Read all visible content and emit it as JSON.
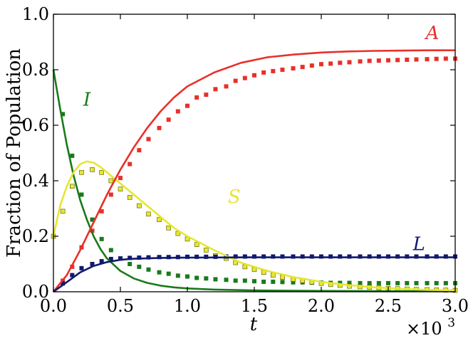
{
  "chart_data": {
    "type": "line",
    "title": "",
    "xlabel": "t",
    "ylabel": "Fraction of Population",
    "x_multiplier_label": "×10",
    "x_multiplier_exp": "3",
    "xlim": [
      0,
      3.0
    ],
    "ylim": [
      0,
      1.0
    ],
    "xticks": [
      "0.0",
      "0.5",
      "1.0",
      "1.5",
      "2.0",
      "2.5",
      "3.0"
    ],
    "yticks": [
      "0.0",
      "0.2",
      "0.4",
      "0.6",
      "0.8",
      "1.0"
    ],
    "grid": false,
    "series": [
      {
        "name": "I",
        "color": "#1a7a1a",
        "line": {
          "x": [
            0,
            0.05,
            0.1,
            0.15,
            0.2,
            0.25,
            0.3,
            0.35,
            0.4,
            0.5,
            0.6,
            0.7,
            0.8,
            0.9,
            1.0,
            1.2,
            1.5,
            2.0,
            2.5,
            3.0
          ],
          "y": [
            0.8,
            0.66,
            0.53,
            0.42,
            0.33,
            0.26,
            0.2,
            0.155,
            0.12,
            0.075,
            0.048,
            0.032,
            0.022,
            0.016,
            0.012,
            0.008,
            0.005,
            0.003,
            0.002,
            0.002
          ]
        },
        "points": {
          "x": [
            0.07,
            0.14,
            0.21,
            0.29,
            0.36,
            0.43,
            0.5,
            0.57,
            0.64,
            0.71,
            0.79,
            0.86,
            0.93,
            1.0,
            1.07,
            1.14,
            1.21,
            1.29,
            1.36,
            1.43,
            1.5,
            1.57,
            1.64,
            1.71,
            1.79,
            1.86,
            1.93,
            2.0,
            2.07,
            2.14,
            2.21,
            2.29,
            2.36,
            2.43,
            2.5,
            2.57,
            2.64,
            2.71,
            2.79,
            2.86,
            2.93,
            3.0
          ],
          "y": [
            0.64,
            0.49,
            0.35,
            0.26,
            0.19,
            0.15,
            0.12,
            0.1,
            0.09,
            0.08,
            0.07,
            0.065,
            0.058,
            0.055,
            0.05,
            0.048,
            0.045,
            0.043,
            0.04,
            0.04,
            0.038,
            0.036,
            0.036,
            0.035,
            0.034,
            0.034,
            0.033,
            0.033,
            0.032,
            0.032,
            0.032,
            0.031,
            0.031,
            0.031,
            0.031,
            0.031,
            0.031,
            0.031,
            0.031,
            0.031,
            0.031,
            0.031
          ]
        }
      },
      {
        "name": "S",
        "color": "#e6e632",
        "line": {
          "x": [
            0,
            0.05,
            0.1,
            0.15,
            0.2,
            0.25,
            0.3,
            0.35,
            0.4,
            0.5,
            0.6,
            0.7,
            0.8,
            0.9,
            1.0,
            1.2,
            1.4,
            1.6,
            1.8,
            2.0,
            2.2,
            2.4,
            2.6,
            2.8,
            3.0
          ],
          "y": [
            0.2,
            0.31,
            0.38,
            0.43,
            0.46,
            0.47,
            0.465,
            0.45,
            0.43,
            0.39,
            0.35,
            0.31,
            0.27,
            0.23,
            0.2,
            0.15,
            0.105,
            0.075,
            0.052,
            0.036,
            0.024,
            0.016,
            0.01,
            0.007,
            0.005
          ]
        },
        "points": {
          "x": [
            0.0,
            0.07,
            0.14,
            0.21,
            0.29,
            0.36,
            0.43,
            0.5,
            0.57,
            0.64,
            0.71,
            0.79,
            0.86,
            0.93,
            1.0,
            1.07,
            1.14,
            1.21,
            1.29,
            1.36,
            1.43,
            1.5,
            1.57,
            1.64,
            1.71,
            1.79,
            1.86,
            1.93,
            2.0,
            2.07,
            2.14,
            2.21,
            2.29,
            2.36,
            2.43,
            2.5,
            2.57,
            2.64,
            2.71,
            2.79,
            2.86,
            2.93,
            3.0
          ],
          "y": [
            0.2,
            0.29,
            0.38,
            0.43,
            0.44,
            0.43,
            0.4,
            0.37,
            0.34,
            0.31,
            0.28,
            0.26,
            0.23,
            0.21,
            0.19,
            0.17,
            0.15,
            0.13,
            0.12,
            0.105,
            0.09,
            0.08,
            0.07,
            0.06,
            0.052,
            0.045,
            0.04,
            0.035,
            0.03,
            0.026,
            0.023,
            0.02,
            0.018,
            0.016,
            0.014,
            0.012,
            0.011,
            0.01,
            0.009,
            0.008,
            0.007,
            0.006,
            0.005
          ]
        }
      },
      {
        "name": "A",
        "color": "#e8302a",
        "line": {
          "x": [
            0,
            0.1,
            0.2,
            0.3,
            0.4,
            0.5,
            0.6,
            0.7,
            0.8,
            0.9,
            1.0,
            1.2,
            1.4,
            1.6,
            1.8,
            2.0,
            2.2,
            2.4,
            2.6,
            2.8,
            3.0
          ],
          "y": [
            0,
            0.06,
            0.15,
            0.25,
            0.35,
            0.44,
            0.52,
            0.59,
            0.65,
            0.7,
            0.74,
            0.79,
            0.825,
            0.845,
            0.855,
            0.862,
            0.866,
            0.868,
            0.869,
            0.87,
            0.87
          ]
        },
        "points": {
          "x": [
            0.07,
            0.14,
            0.21,
            0.29,
            0.36,
            0.43,
            0.5,
            0.57,
            0.64,
            0.71,
            0.79,
            0.86,
            0.93,
            1.0,
            1.07,
            1.14,
            1.21,
            1.29,
            1.36,
            1.43,
            1.5,
            1.57,
            1.64,
            1.71,
            1.79,
            1.86,
            1.93,
            2.0,
            2.07,
            2.14,
            2.21,
            2.29,
            2.36,
            2.43,
            2.5,
            2.57,
            2.64,
            2.71,
            2.79,
            2.86,
            2.93,
            3.0
          ],
          "y": [
            0.04,
            0.09,
            0.16,
            0.22,
            0.29,
            0.35,
            0.41,
            0.46,
            0.51,
            0.55,
            0.59,
            0.62,
            0.65,
            0.67,
            0.7,
            0.71,
            0.73,
            0.74,
            0.76,
            0.77,
            0.78,
            0.79,
            0.795,
            0.8,
            0.805,
            0.81,
            0.815,
            0.82,
            0.822,
            0.825,
            0.827,
            0.83,
            0.832,
            0.833,
            0.834,
            0.835,
            0.836,
            0.837,
            0.838,
            0.839,
            0.84,
            0.84
          ]
        }
      },
      {
        "name": "L",
        "color": "#101a6e",
        "line": {
          "x": [
            0,
            0.1,
            0.2,
            0.3,
            0.4,
            0.5,
            0.6,
            0.8,
            1.0,
            1.5,
            2.0,
            2.5,
            3.0
          ],
          "y": [
            0,
            0.035,
            0.07,
            0.093,
            0.107,
            0.115,
            0.119,
            0.122,
            0.123,
            0.124,
            0.124,
            0.124,
            0.124
          ]
        },
        "points": {
          "x": [
            0.07,
            0.14,
            0.21,
            0.29,
            0.36,
            0.43,
            0.5,
            0.57,
            0.64,
            0.71,
            0.79,
            0.86,
            0.93,
            1.0,
            1.07,
            1.14,
            1.21,
            1.29,
            1.36,
            1.43,
            1.5,
            1.57,
            1.64,
            1.71,
            1.79,
            1.86,
            1.93,
            2.0,
            2.07,
            2.14,
            2.21,
            2.29,
            2.36,
            2.43,
            2.5,
            2.57,
            2.64,
            2.71,
            2.79,
            2.86,
            2.93,
            3.0
          ],
          "y": [
            0.03,
            0.06,
            0.085,
            0.1,
            0.11,
            0.118,
            0.12,
            0.122,
            0.123,
            0.124,
            0.125,
            0.125,
            0.125,
            0.126,
            0.126,
            0.126,
            0.126,
            0.127,
            0.127,
            0.127,
            0.127,
            0.127,
            0.127,
            0.127,
            0.127,
            0.127,
            0.127,
            0.127,
            0.127,
            0.127,
            0.127,
            0.127,
            0.127,
            0.127,
            0.127,
            0.127,
            0.127,
            0.127,
            0.127,
            0.127,
            0.127,
            0.127
          ]
        }
      }
    ],
    "annotations": [
      {
        "text": "I",
        "series": "I",
        "x": 0.25,
        "y": 0.67
      },
      {
        "text": "S",
        "series": "S",
        "x": 1.35,
        "y": 0.32
      },
      {
        "text": "A",
        "series": "A",
        "x": 2.83,
        "y": 0.91
      },
      {
        "text": "L",
        "series": "L",
        "x": 2.73,
        "y": 0.15
      }
    ]
  }
}
